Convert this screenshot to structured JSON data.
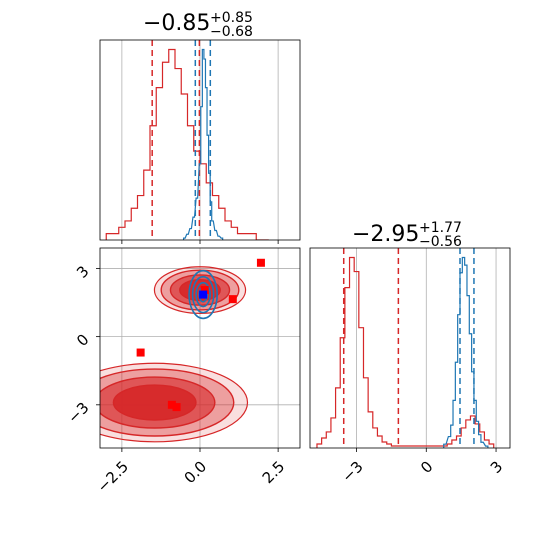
{
  "colors": {
    "series_a": "#d62728",
    "series_b": "#1f77b4",
    "truth_marker": "#ff0000",
    "blue_marker": "#0000ff",
    "grid": "#b0b0b0"
  },
  "chart_data": [
    {
      "type": "histogram",
      "panel": "top-left",
      "title_value": "−0.85",
      "title_upper": "+0.85",
      "title_lower": "−0.68",
      "xlim": [
        -3.2,
        3.2
      ],
      "grid": true,
      "series": [
        {
          "color_key": "series_a",
          "bins_center": [
            -2.9,
            -2.7,
            -2.5,
            -2.3,
            -2.1,
            -1.9,
            -1.7,
            -1.5,
            -1.3,
            -1.1,
            -0.9,
            -0.7,
            -0.5,
            -0.3,
            -0.1,
            0.1,
            0.3,
            0.5,
            0.7,
            0.9,
            1.1,
            1.3,
            1.5,
            1.7,
            1.9,
            2.1
          ],
          "counts": [
            1,
            1,
            2,
            3,
            5,
            7,
            11,
            18,
            24,
            28,
            30,
            27,
            23,
            18,
            14,
            12,
            9,
            7,
            5,
            3,
            2,
            1,
            1,
            1,
            0,
            0
          ],
          "quantiles": [
            -1.53,
            -0.02
          ]
        },
        {
          "color_key": "series_b",
          "bins_center": [
            -0.5,
            -0.4,
            -0.3,
            -0.2,
            -0.1,
            0.0,
            0.05,
            0.1,
            0.15,
            0.2,
            0.25,
            0.3,
            0.35,
            0.4,
            0.5,
            0.6,
            0.7
          ],
          "counts": [
            1,
            3,
            6,
            12,
            22,
            40,
            70,
            100,
            95,
            80,
            55,
            35,
            20,
            10,
            5,
            2,
            1
          ],
          "quantiles": [
            -0.15,
            0.33
          ]
        }
      ]
    },
    {
      "type": "histogram",
      "panel": "bottom-right",
      "title_value": "−2.95",
      "title_upper": "+1.77",
      "title_lower": "−0.56",
      "xlim": [
        -5.0,
        3.6
      ],
      "grid": true,
      "series": [
        {
          "color_key": "series_a",
          "bins_center": [
            -4.6,
            -4.4,
            -4.2,
            -4.0,
            -3.8,
            -3.6,
            -3.4,
            -3.2,
            -3.0,
            -2.8,
            -2.6,
            -2.4,
            -2.2,
            -2.0,
            -1.8,
            -1.6,
            -1.4,
            0.8,
            1.0,
            1.2,
            1.4,
            1.6,
            1.8,
            2.0,
            2.2,
            2.4,
            2.6,
            2.8
          ],
          "counts": [
            2,
            5,
            8,
            15,
            30,
            55,
            80,
            95,
            88,
            60,
            35,
            18,
            10,
            6,
            3,
            2,
            1,
            1,
            2,
            4,
            6,
            10,
            14,
            16,
            12,
            8,
            4,
            2
          ],
          "quantiles": [
            -3.55,
            -1.2
          ]
        },
        {
          "color_key": "series_b",
          "bins_center": [
            0.8,
            1.0,
            1.1,
            1.2,
            1.3,
            1.4,
            1.5,
            1.6,
            1.7,
            1.8,
            1.9,
            2.0,
            2.1,
            2.2,
            2.3,
            2.4,
            2.6
          ],
          "counts": [
            2,
            6,
            12,
            25,
            45,
            70,
            92,
            100,
            96,
            80,
            60,
            40,
            25,
            14,
            7,
            3,
            1
          ],
          "quantiles": [
            1.45,
            2.05
          ]
        }
      ]
    },
    {
      "type": "scatter",
      "panel": "bottom-left",
      "xlim": [
        -3.2,
        3.2
      ],
      "ylim": [
        -4.9,
        3.9
      ],
      "grid": true,
      "red_contour_clusters": [
        {
          "cx": 0.0,
          "cy": 2.05,
          "rx": 1.35,
          "ry": 0.95
        },
        {
          "cx": -1.45,
          "cy": -2.9,
          "rx": 2.75,
          "ry": 1.6
        }
      ],
      "blue_contour_cluster": {
        "cx": 0.1,
        "cy": 1.85,
        "rx": 0.45,
        "ry": 1.05
      },
      "truth_markers": [
        {
          "x": 1.95,
          "y": 3.25
        },
        {
          "x": 0.15,
          "y": 2.05
        },
        {
          "x": 1.05,
          "y": 1.65
        },
        {
          "x": -1.9,
          "y": -0.7
        },
        {
          "x": -0.9,
          "y": -3.0
        },
        {
          "x": -0.75,
          "y": -3.1
        }
      ],
      "blue_marker": {
        "x": 0.1,
        "y": 1.85
      }
    }
  ],
  "axes": {
    "bl_x_ticks": [
      {
        "value": -2.5,
        "label": "−2.5"
      },
      {
        "value": 0.0,
        "label": "0.0"
      },
      {
        "value": 2.5,
        "label": "2.5"
      }
    ],
    "bl_y_ticks": [
      {
        "value": 3,
        "label": "3"
      },
      {
        "value": 0,
        "label": "0"
      },
      {
        "value": -3,
        "label": "−3"
      }
    ],
    "br_x_ticks": [
      {
        "value": -3,
        "label": "−3"
      },
      {
        "value": 0,
        "label": "0"
      },
      {
        "value": 3,
        "label": "3"
      }
    ]
  }
}
